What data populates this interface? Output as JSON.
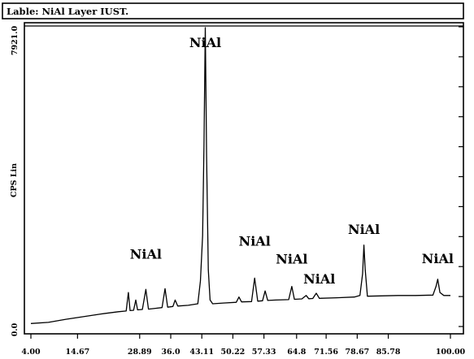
{
  "title": "Lable: NiAl Layer  IUST.",
  "chart_data": {
    "type": "line",
    "title": "Lable: NiAl Layer  IUST.",
    "xlabel": "",
    "ylabel": "CPS Lin",
    "xlim": [
      4.0,
      100.0
    ],
    "ylim": [
      0.0,
      7921.0
    ],
    "x_ticks": [
      "4.00",
      "14.67",
      "28.89",
      "36.0",
      "43.11",
      "50.22",
      "57.33",
      "64.8",
      "71.56",
      "78.67",
      "85.78",
      "100.00"
    ],
    "y_ticks": [
      "0.0",
      "7921.0"
    ],
    "grid": false,
    "series": [
      {
        "points": [
          [
            4.0,
            80
          ],
          [
            8.0,
            110
          ],
          [
            12.0,
            190
          ],
          [
            16.0,
            260
          ],
          [
            20.0,
            330
          ],
          [
            24.0,
            390
          ],
          [
            25.8,
            410
          ],
          [
            26.3,
            900
          ],
          [
            26.7,
            420
          ],
          [
            27.5,
            430
          ],
          [
            28.0,
            700
          ],
          [
            28.4,
            440
          ],
          [
            29.5,
            450
          ],
          [
            30.3,
            980
          ],
          [
            30.9,
            460
          ],
          [
            32.5,
            480
          ],
          [
            34.0,
            500
          ],
          [
            34.7,
            1000
          ],
          [
            35.3,
            510
          ],
          [
            36.5,
            530
          ],
          [
            37.0,
            700
          ],
          [
            37.6,
            540
          ],
          [
            40.0,
            560
          ],
          [
            42.2,
            600
          ],
          [
            42.8,
            1200
          ],
          [
            43.3,
            2400
          ],
          [
            43.6,
            4800
          ],
          [
            43.9,
            7900
          ],
          [
            44.2,
            4500
          ],
          [
            44.6,
            1500
          ],
          [
            45.0,
            700
          ],
          [
            45.6,
            600
          ],
          [
            48.0,
            620
          ],
          [
            51.0,
            640
          ],
          [
            51.6,
            780
          ],
          [
            52.2,
            650
          ],
          [
            54.5,
            660
          ],
          [
            55.2,
            1280
          ],
          [
            55.9,
            670
          ],
          [
            57.0,
            680
          ],
          [
            57.6,
            940
          ],
          [
            58.2,
            690
          ],
          [
            60.0,
            700
          ],
          [
            63.0,
            710
          ],
          [
            63.7,
            1060
          ],
          [
            64.3,
            720
          ],
          [
            66.0,
            730
          ],
          [
            67.0,
            820
          ],
          [
            67.6,
            735
          ],
          [
            68.5,
            740
          ],
          [
            69.3,
            880
          ],
          [
            70.0,
            745
          ],
          [
            74.0,
            760
          ],
          [
            78.0,
            780
          ],
          [
            79.3,
            820
          ],
          [
            79.9,
            1400
          ],
          [
            80.2,
            2150
          ],
          [
            80.5,
            1500
          ],
          [
            81.0,
            800
          ],
          [
            84.0,
            810
          ],
          [
            88.0,
            820
          ],
          [
            92.0,
            820
          ],
          [
            96.0,
            830
          ],
          [
            96.7,
            1060
          ],
          [
            97.1,
            1250
          ],
          [
            97.6,
            900
          ],
          [
            98.5,
            820
          ],
          [
            100.0,
            820
          ]
        ]
      }
    ],
    "annotations": [
      {
        "text": "NiAl",
        "x": 43.9
      },
      {
        "text": "NiAl",
        "x": 30.3
      },
      {
        "text": "NiAl",
        "x": 55.2
      },
      {
        "text": "NiAl",
        "x": 63.7
      },
      {
        "text": "NiAl",
        "x": 70.0
      },
      {
        "text": "NiAl",
        "x": 80.2
      },
      {
        "text": "NiAl",
        "x": 97.1
      }
    ]
  }
}
